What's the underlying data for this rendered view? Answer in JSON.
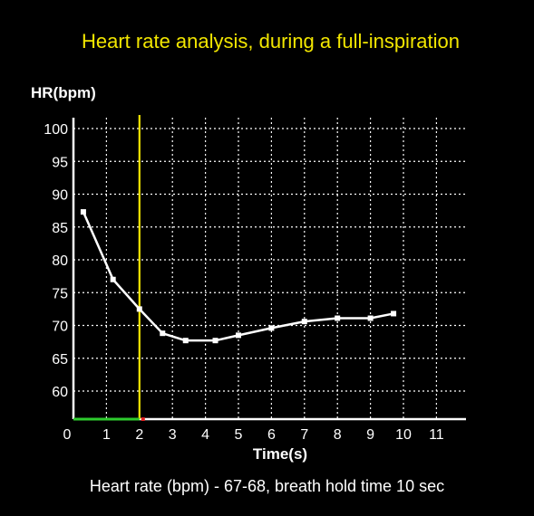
{
  "chart_data": {
    "type": "line",
    "title": "Heart rate analysis, during a full-inspiration",
    "ylabel": "HR(bpm)",
    "xlabel": "Time(s)",
    "footer": "Heart rate (bpm) - 67-68, breath hold time 10 sec",
    "xlim": [
      0,
      12
    ],
    "ylim": [
      56,
      100
    ],
    "x_ticks": [
      "0",
      "1",
      "2",
      "3",
      "4",
      "5",
      "6",
      "7",
      "8",
      "9",
      "10",
      "11"
    ],
    "y_ticks": [
      "60",
      "65",
      "70",
      "75",
      "80",
      "85",
      "90",
      "95",
      "100"
    ],
    "grid": true,
    "series": [
      {
        "x": [
          0.3,
          1.2,
          2.0,
          2.7,
          3.4,
          4.3,
          5.0,
          6.0,
          7.0,
          8.0,
          9.0,
          9.7
        ],
        "values": [
          87.3,
          77.0,
          72.5,
          68.8,
          67.7,
          67.7,
          68.5,
          69.6,
          70.6,
          71.1,
          71.1,
          71.8
        ]
      }
    ],
    "markers": {
      "vertical_line_x": 2,
      "horizontal_segment_x": [
        0,
        2
      ],
      "endpoint_marker_x": 2
    },
    "colors": {
      "background": "#000000",
      "title": "#f2e600",
      "line": "#ffffff",
      "vertical_line": "#f2e600",
      "horizontal_segment": "#2ecc2e",
      "endpoint_marker": "#e02020",
      "grid": "#ffffff"
    }
  }
}
